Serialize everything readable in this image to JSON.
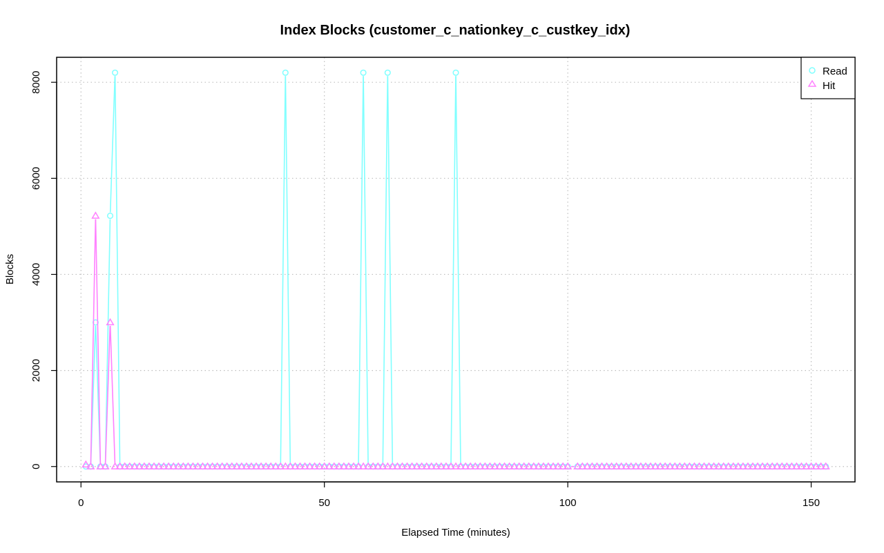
{
  "chart_data": {
    "type": "line",
    "title": "Index Blocks (customer_c_nationkey_c_custkey_idx)",
    "xlabel": "Elapsed Time (minutes)",
    "ylabel": "Blocks",
    "xlim": [
      -5,
      159
    ],
    "ylim": [
      -320,
      8520
    ],
    "x_ticks": [
      0,
      50,
      100,
      150
    ],
    "y_ticks": [
      0,
      2000,
      4000,
      6000,
      8000
    ],
    "grid": true,
    "legend_position": "top-right",
    "x": [
      1,
      2,
      3,
      4,
      5,
      6,
      7,
      8,
      9,
      10,
      11,
      12,
      13,
      14,
      15,
      16,
      17,
      18,
      19,
      20,
      21,
      22,
      23,
      24,
      25,
      26,
      27,
      28,
      29,
      30,
      31,
      32,
      33,
      34,
      35,
      36,
      37,
      38,
      39,
      40,
      41,
      42,
      43,
      44,
      45,
      46,
      47,
      48,
      49,
      50,
      51,
      52,
      53,
      54,
      55,
      56,
      57,
      58,
      59,
      60,
      61,
      62,
      63,
      64,
      65,
      66,
      67,
      68,
      69,
      70,
      71,
      72,
      73,
      74,
      75,
      76,
      77,
      78,
      79,
      80,
      81,
      82,
      83,
      84,
      85,
      86,
      87,
      88,
      89,
      90,
      91,
      92,
      93,
      94,
      95,
      96,
      97,
      98,
      99,
      100,
      102,
      103,
      104,
      105,
      106,
      107,
      108,
      109,
      110,
      111,
      112,
      113,
      114,
      115,
      116,
      117,
      118,
      119,
      120,
      121,
      122,
      123,
      124,
      125,
      126,
      127,
      128,
      129,
      130,
      131,
      132,
      133,
      134,
      135,
      136,
      137,
      138,
      139,
      140,
      141,
      142,
      143,
      144,
      145,
      146,
      147,
      148,
      149,
      150,
      151,
      152,
      153
    ],
    "series": [
      {
        "name": "Read",
        "color": "#80FFFF",
        "marker": "circle",
        "values": [
          0,
          0,
          3000,
          0,
          0,
          5220,
          8200,
          0,
          0,
          0,
          0,
          0,
          0,
          0,
          0,
          0,
          0,
          0,
          0,
          0,
          0,
          0,
          0,
          0,
          0,
          0,
          0,
          0,
          0,
          0,
          0,
          0,
          0,
          0,
          0,
          0,
          0,
          0,
          0,
          0,
          0,
          8200,
          0,
          0,
          0,
          0,
          0,
          0,
          0,
          0,
          0,
          0,
          0,
          0,
          0,
          0,
          0,
          8200,
          0,
          0,
          0,
          0,
          8200,
          0,
          0,
          0,
          0,
          0,
          0,
          0,
          0,
          0,
          0,
          0,
          0,
          0,
          8200,
          0,
          0,
          0,
          0,
          0,
          0,
          0,
          0,
          0,
          0,
          0,
          0,
          0,
          0,
          0,
          0,
          0,
          0,
          0,
          0,
          0,
          0,
          0,
          0,
          0,
          0,
          0,
          0,
          0,
          0,
          0,
          0,
          0,
          0,
          0,
          0,
          0,
          0,
          0,
          0,
          0,
          0,
          0,
          0,
          0,
          0,
          0,
          0,
          0,
          0,
          0,
          0,
          0,
          0,
          0,
          0,
          0,
          0,
          0,
          0,
          0,
          0,
          0,
          0,
          0,
          0,
          0,
          0,
          0,
          0,
          0,
          0,
          0,
          0,
          0
        ]
      },
      {
        "name": "Hit",
        "color": "#FF80FF",
        "marker": "triangle",
        "values": [
          40,
          0,
          5220,
          0,
          0,
          3000,
          0,
          0,
          0,
          0,
          0,
          0,
          0,
          0,
          0,
          0,
          0,
          0,
          0,
          0,
          0,
          0,
          0,
          0,
          0,
          0,
          0,
          0,
          0,
          0,
          0,
          0,
          0,
          0,
          0,
          0,
          0,
          0,
          0,
          0,
          0,
          0,
          0,
          0,
          0,
          0,
          0,
          0,
          0,
          0,
          0,
          0,
          0,
          0,
          0,
          0,
          0,
          0,
          0,
          0,
          0,
          0,
          0,
          0,
          0,
          0,
          0,
          0,
          0,
          0,
          0,
          0,
          0,
          0,
          0,
          0,
          0,
          0,
          0,
          0,
          0,
          0,
          0,
          0,
          0,
          0,
          0,
          0,
          0,
          0,
          0,
          0,
          0,
          0,
          0,
          0,
          0,
          0,
          0,
          0,
          0,
          0,
          0,
          0,
          0,
          0,
          0,
          0,
          0,
          0,
          0,
          0,
          0,
          0,
          0,
          0,
          0,
          0,
          0,
          0,
          0,
          0,
          0,
          0,
          0,
          0,
          0,
          0,
          0,
          0,
          0,
          0,
          0,
          0,
          0,
          0,
          0,
          0,
          0,
          0,
          0,
          0,
          0,
          0,
          0,
          0,
          0,
          0,
          0,
          0,
          0,
          0
        ]
      }
    ]
  }
}
